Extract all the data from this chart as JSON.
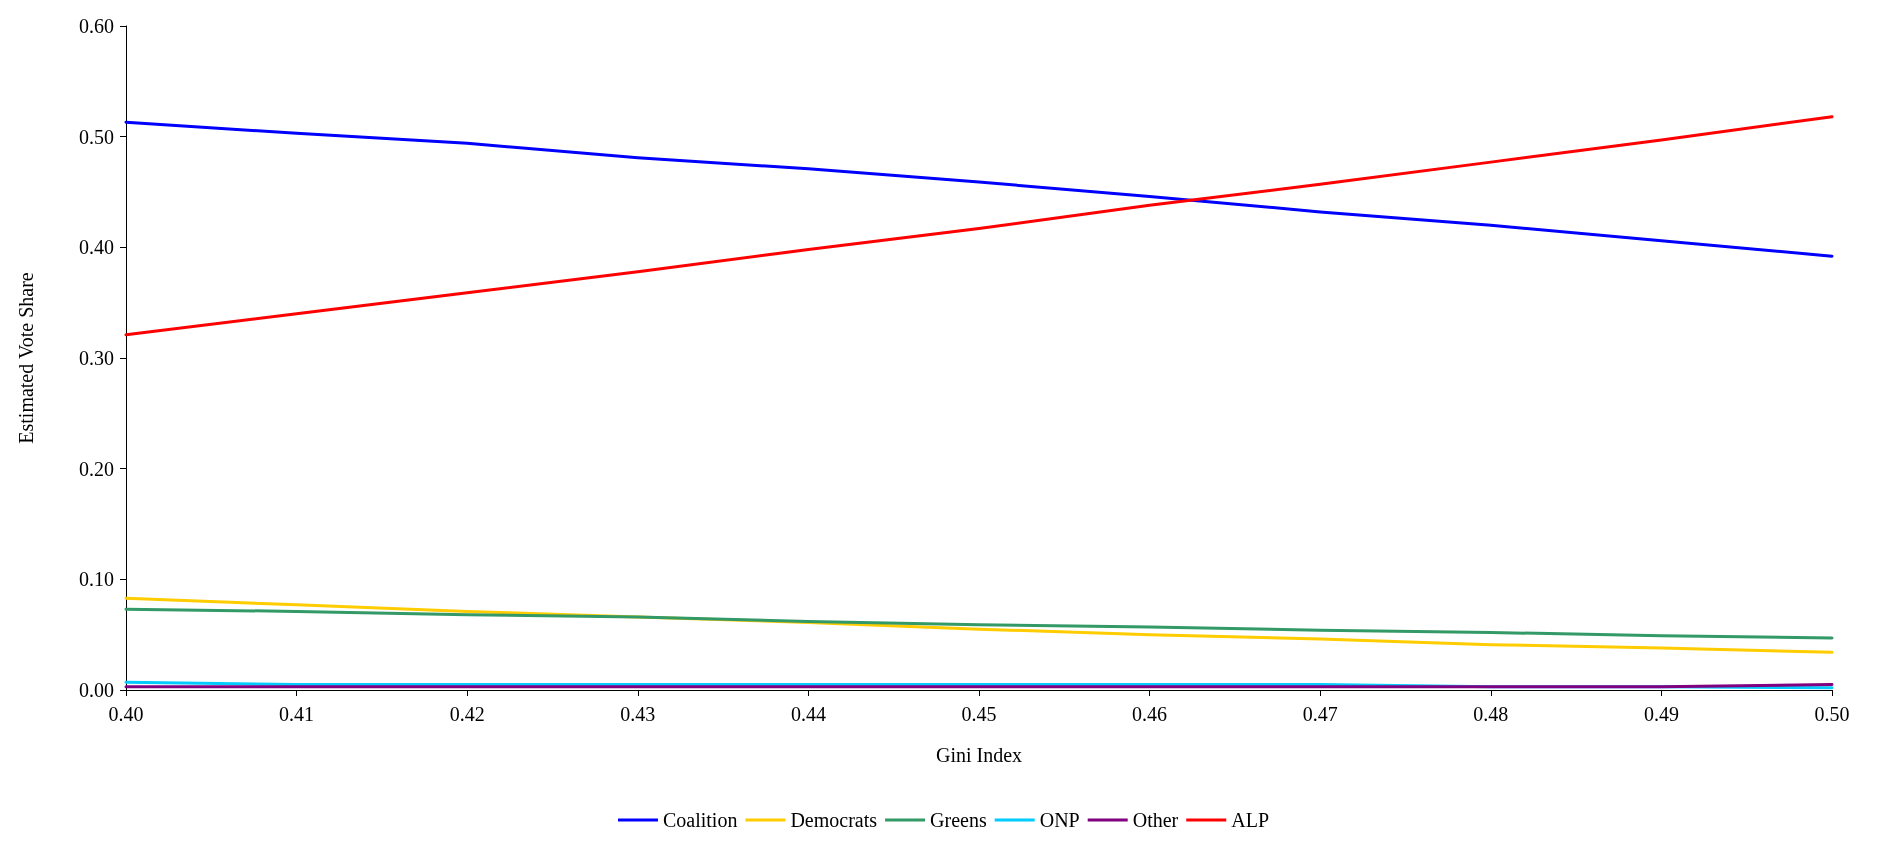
{
  "chart_data": {
    "type": "line",
    "xlabel": "Gini Index",
    "ylabel": "Estimated Vote Share",
    "x": [
      0.4,
      0.41,
      0.42,
      0.43,
      0.44,
      0.45,
      0.46,
      0.47,
      0.48,
      0.49,
      0.5
    ],
    "series": [
      {
        "name": "Coalition",
        "color": "#0000ff",
        "values": [
          0.513,
          0.503,
          0.494,
          0.481,
          0.471,
          0.459,
          0.446,
          0.432,
          0.42,
          0.406,
          0.392
        ]
      },
      {
        "name": "Democrats",
        "color": "#ffcc00",
        "values": [
          0.083,
          0.077,
          0.071,
          0.066,
          0.061,
          0.055,
          0.05,
          0.046,
          0.041,
          0.038,
          0.034
        ]
      },
      {
        "name": "Greens",
        "color": "#339966",
        "values": [
          0.073,
          0.071,
          0.068,
          0.066,
          0.062,
          0.059,
          0.057,
          0.054,
          0.052,
          0.049,
          0.047
        ]
      },
      {
        "name": "ONP",
        "color": "#00ccff",
        "values": [
          0.007,
          0.005,
          0.005,
          0.005,
          0.005,
          0.005,
          0.005,
          0.005,
          0.003,
          0.003,
          0.002
        ]
      },
      {
        "name": "Other",
        "color": "#800080",
        "values": [
          0.003,
          0.003,
          0.003,
          0.003,
          0.003,
          0.003,
          0.003,
          0.003,
          0.003,
          0.003,
          0.005
        ]
      },
      {
        "name": "ALP",
        "color": "#ff0000",
        "values": [
          0.321,
          0.34,
          0.359,
          0.378,
          0.398,
          0.417,
          0.438,
          0.457,
          0.477,
          0.497,
          0.518
        ]
      }
    ],
    "xlim": [
      0.4,
      0.5
    ],
    "xticks": [
      {
        "value": 0.4,
        "label": "0.40"
      },
      {
        "value": 0.41,
        "label": "0.41"
      },
      {
        "value": 0.42,
        "label": "0.42"
      },
      {
        "value": 0.43,
        "label": "0.43"
      },
      {
        "value": 0.44,
        "label": "0.44"
      },
      {
        "value": 0.45,
        "label": "0.45"
      },
      {
        "value": 0.46,
        "label": "0.46"
      },
      {
        "value": 0.47,
        "label": "0.47"
      },
      {
        "value": 0.48,
        "label": "0.48"
      },
      {
        "value": 0.49,
        "label": "0.49"
      },
      {
        "value": 0.5,
        "label": "0.50"
      }
    ],
    "ylim": [
      0,
      0.6
    ],
    "yticks": [
      {
        "value": 0,
        "label": "0.00"
      },
      {
        "value": 0.1,
        "label": "0.10"
      },
      {
        "value": 0.2,
        "label": "0.20"
      },
      {
        "value": 0.3,
        "label": "0.30"
      },
      {
        "value": 0.4,
        "label": "0.40"
      },
      {
        "value": 0.5,
        "label": "0.50"
      },
      {
        "value": 0.6,
        "label": "0.60"
      }
    ],
    "grid": false,
    "legend": "bottom",
    "marker": "none",
    "line_style": "solid"
  }
}
